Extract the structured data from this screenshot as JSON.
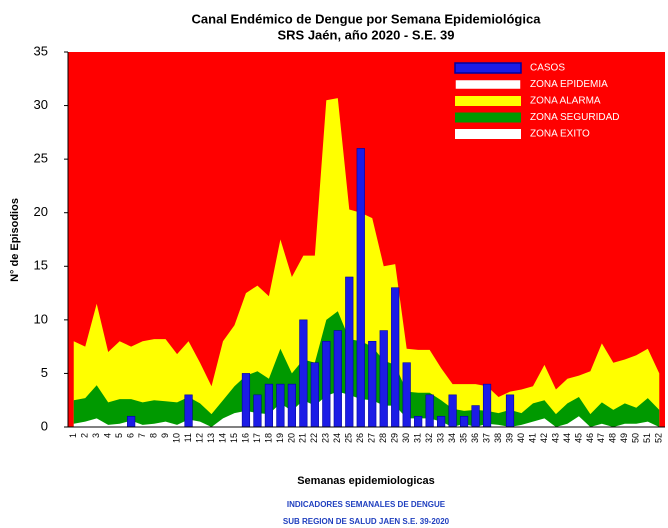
{
  "chart_data": {
    "type": "endemic_channel",
    "title": "Canal Endémico de Dengue por Semana Epidemiológica",
    "subtitle": "SRS Jaén, año 2020 - S.E. 39",
    "x_label": "Semanas epidemiologicas",
    "y_label": "N° de Episodios",
    "categories": [
      "1",
      "2",
      "3",
      "4",
      "5",
      "6",
      "7",
      "8",
      "9",
      "10",
      "11",
      "12",
      "13",
      "14",
      "15",
      "16",
      "17",
      "18",
      "19",
      "20",
      "21",
      "22",
      "23",
      "24",
      "25",
      "26",
      "27",
      "28",
      "29",
      "30",
      "31",
      "32",
      "33",
      "34",
      "35",
      "36",
      "37",
      "38",
      "39",
      "40",
      "41",
      "42",
      "43",
      "44",
      "45",
      "46",
      "47",
      "48",
      "49",
      "50",
      "51",
      "52"
    ],
    "ylim": [
      0,
      35
    ],
    "yticks": [
      0,
      5,
      10,
      15,
      20,
      25,
      30,
      35
    ],
    "legend": "upper right",
    "series": [
      {
        "name": "CASOS",
        "kind": "bar",
        "color": "#1c1ce6",
        "values": [
          0,
          0,
          0,
          0,
          0,
          1,
          0,
          0,
          0,
          0,
          3,
          0,
          0,
          0,
          0,
          5,
          3,
          4,
          4,
          4,
          10,
          6,
          8,
          9,
          14,
          26,
          8,
          9,
          13,
          6,
          1,
          3,
          1,
          3,
          1,
          2,
          4,
          0,
          3,
          null,
          null,
          null,
          null,
          null,
          null,
          null,
          null,
          null,
          null,
          null,
          null,
          null
        ]
      },
      {
        "name": "ZONA EPIDEMIA",
        "kind": "background",
        "color": "#ff0000"
      },
      {
        "name": "ZONA ALARMA",
        "kind": "area",
        "color": "#ffff00",
        "values": [
          8,
          7.5,
          11.5,
          7,
          8,
          7.5,
          8,
          8.2,
          8.2,
          6.8,
          8,
          6,
          3.8,
          8,
          9.5,
          12.5,
          13.2,
          12.2,
          17.5,
          14,
          16,
          16,
          30.5,
          30.7,
          20.3,
          20,
          19.5,
          15,
          15.2,
          7.3,
          7.2,
          7.2,
          5.5,
          4,
          4,
          4,
          3.8,
          2.8,
          3.3,
          3.5,
          3.8,
          5.8,
          3.5,
          4.5,
          4.8,
          5.2,
          7.8,
          6,
          6.3,
          6.7,
          7.3,
          5
        ]
      },
      {
        "name": "ZONA SEGURIDAD",
        "kind": "area",
        "color": "#009900",
        "values": [
          2.5,
          2.7,
          3.9,
          2.3,
          2.6,
          2.6,
          2.3,
          2.5,
          2.4,
          2.3,
          2.8,
          2.2,
          1.2,
          2.5,
          3.8,
          4.8,
          5.2,
          4.5,
          7.3,
          5,
          6.3,
          6,
          10,
          10.8,
          8.2,
          8,
          7.5,
          6.2,
          5.8,
          3.3,
          3.2,
          3.2,
          2.5,
          1.7,
          1.5,
          1.6,
          1.5,
          1.3,
          1.6,
          1.3,
          2.2,
          2.5,
          1.2,
          2.2,
          2.8,
          1.2,
          2.3,
          1.6,
          2.2,
          1.8,
          2.7,
          1.6
        ]
      },
      {
        "name": "ZONA EXITO",
        "kind": "area",
        "color": "#ffffff",
        "values": [
          0.3,
          0.5,
          0.8,
          0.2,
          0.3,
          0.6,
          0.2,
          0.3,
          0.5,
          0.2,
          0.7,
          0.5,
          0,
          0.8,
          1.3,
          1.5,
          1.3,
          1.2,
          2.2,
          1.5,
          2.5,
          2,
          2.9,
          3.3,
          3,
          2.6,
          2.5,
          2,
          2,
          0.8,
          0.8,
          0.8,
          0.5,
          0,
          0.3,
          0,
          0.3,
          0.2,
          0,
          0.2,
          0.5,
          0.8,
          0,
          0.3,
          1,
          0,
          0.3,
          0,
          0.3,
          0.3,
          0.5,
          0
        ]
      }
    ],
    "footer": [
      "INDICADORES SEMANALES DE DENGUE",
      "SUB REGION DE SALUD JAEN S.E. 39-2020"
    ]
  }
}
